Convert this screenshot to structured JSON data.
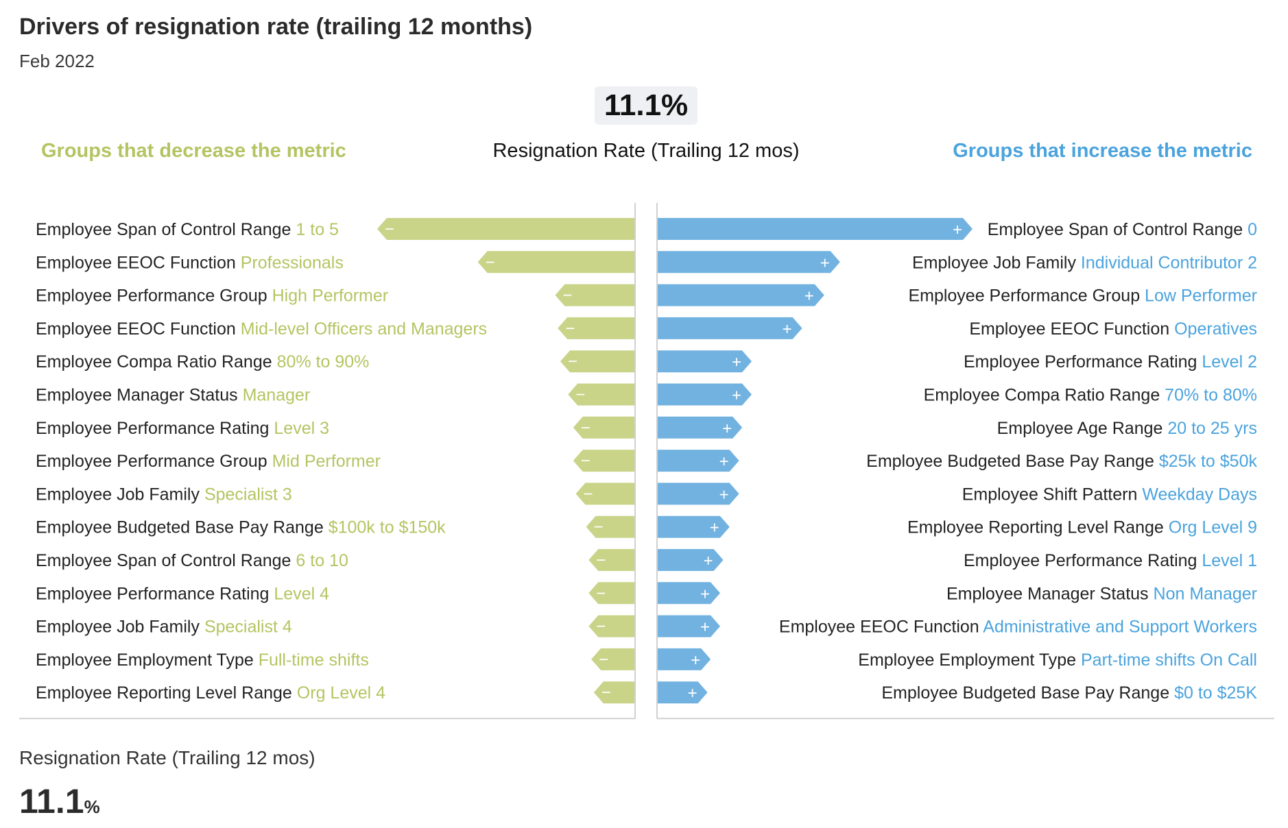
{
  "header": {
    "title": "Drivers of resignation rate (trailing 12 months)",
    "subtitle": "Feb 2022"
  },
  "summary": {
    "value": "11.1%",
    "metric_label": "Resignation Rate (Trailing 12 mos)",
    "footer_label": "Resignation Rate (Trailing 12 mos)",
    "footer_value": "11.1",
    "footer_unit": "%"
  },
  "columns": {
    "decrease_label": "Groups that decrease the metric",
    "increase_label": "Groups that increase the metric"
  },
  "colors": {
    "decrease": "#c9d488",
    "decrease_text": "#b5c462",
    "increase": "#72b2e0",
    "increase_text": "#4aa3dd",
    "label_text": "#222222"
  },
  "signs": {
    "decrease": "−",
    "increase": "+"
  },
  "chart_data": {
    "type": "bar",
    "metric": "Resignation Rate (Trailing 12 mos)",
    "value_units": "relative impact (0–100 scale, estimated from bar lengths)",
    "decrease": [
      {
        "dimension": "Employee Span of Control Range",
        "group": "1 to 5",
        "value": 100
      },
      {
        "dimension": "Employee EEOC Function",
        "group": "Professionals",
        "value": 61
      },
      {
        "dimension": "Employee Performance Group",
        "group": "High Performer",
        "value": 31
      },
      {
        "dimension": "Employee EEOC Function",
        "group": "Mid-level Officers and Managers",
        "value": 30
      },
      {
        "dimension": "Employee Compa Ratio Range",
        "group": "80% to 90%",
        "value": 29
      },
      {
        "dimension": "Employee Manager Status",
        "group": "Manager",
        "value": 26
      },
      {
        "dimension": "Employee Performance Rating",
        "group": "Level 3",
        "value": 24
      },
      {
        "dimension": "Employee Performance Group",
        "group": "Mid Performer",
        "value": 24
      },
      {
        "dimension": "Employee Job Family",
        "group": "Specialist 3",
        "value": 23
      },
      {
        "dimension": "Employee Budgeted Base Pay Range",
        "group": "$100k to $150k",
        "value": 19
      },
      {
        "dimension": "Employee Span of Control Range",
        "group": "6 to 10",
        "value": 18
      },
      {
        "dimension": "Employee Performance Rating",
        "group": "Level 4",
        "value": 18
      },
      {
        "dimension": "Employee Job Family",
        "group": "Specialist 4",
        "value": 18
      },
      {
        "dimension": "Employee Employment Type",
        "group": "Full-time shifts",
        "value": 17
      },
      {
        "dimension": "Employee Reporting Level Range",
        "group": "Org Level 4",
        "value": 16
      }
    ],
    "increase": [
      {
        "dimension": "Employee Span of Control Range",
        "group": "0",
        "value": 100
      },
      {
        "dimension": "Employee Job Family",
        "group": "Individual Contributor 2",
        "value": 58
      },
      {
        "dimension": "Employee Performance Group",
        "group": "Low Performer",
        "value": 53
      },
      {
        "dimension": "Employee EEOC Function",
        "group": "Operatives",
        "value": 46
      },
      {
        "dimension": "Employee Performance Rating",
        "group": "Level 2",
        "value": 30
      },
      {
        "dimension": "Employee Compa Ratio Range",
        "group": "70% to 80%",
        "value": 30
      },
      {
        "dimension": "Employee Age Range",
        "group": "20 to 25 yrs",
        "value": 27
      },
      {
        "dimension": "Employee Budgeted Base Pay Range",
        "group": "$25k to $50k",
        "value": 26
      },
      {
        "dimension": "Employee Shift Pattern",
        "group": "Weekday Days",
        "value": 26
      },
      {
        "dimension": "Employee Reporting Level Range",
        "group": "Org Level 9",
        "value": 23
      },
      {
        "dimension": "Employee Performance Rating",
        "group": "Level 1",
        "value": 21
      },
      {
        "dimension": "Employee Manager Status",
        "group": "Non Manager",
        "value": 20
      },
      {
        "dimension": "Employee EEOC Function",
        "group": "Administrative and Support Workers",
        "value": 20
      },
      {
        "dimension": "Employee Employment Type",
        "group": "Part-time shifts On Call",
        "value": 17
      },
      {
        "dimension": "Employee Budgeted Base Pay Range",
        "group": "$0 to $25K",
        "value": 16
      }
    ]
  }
}
